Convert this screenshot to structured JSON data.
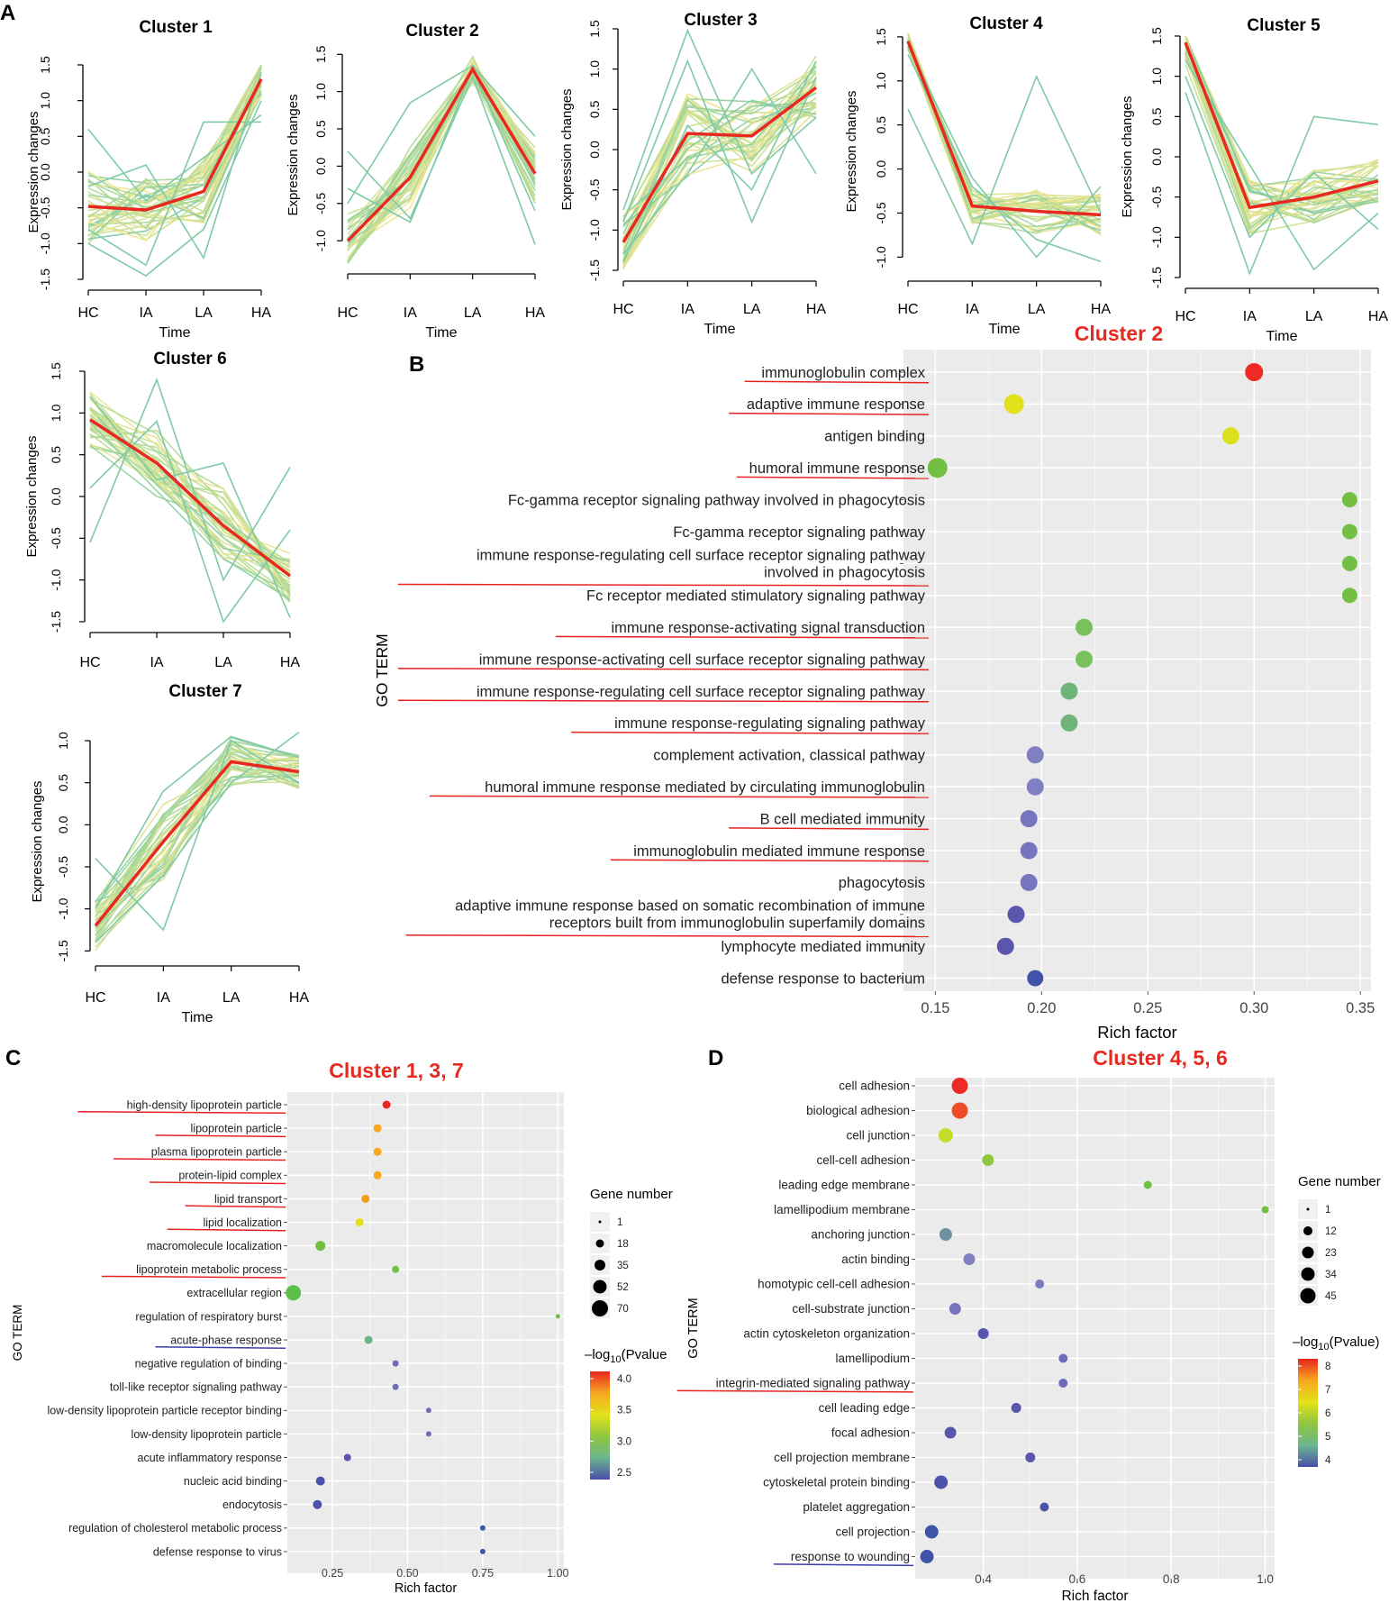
{
  "panel_labels": {
    "a": "A",
    "b": "B",
    "c": "C",
    "d": "D"
  },
  "chart_data": [
    {
      "panel": "A",
      "type": "line",
      "title": "Cluster 1",
      "xlabel": "Time",
      "ylabel": "Expression changes",
      "categories": [
        "HC",
        "IA",
        "LA",
        "HA"
      ],
      "yticks": [
        -1.5,
        -1.0,
        -0.5,
        0.0,
        0.5,
        1.0,
        1.5
      ],
      "ytick_labels": [
        "-1.5",
        "-1.0",
        "-0.5",
        "0.0",
        "0.5",
        "1.0",
        "1.5"
      ],
      "ylim": [
        -1.5,
        1.5
      ],
      "centroid": [
        -0.48,
        -0.53,
        -0.27,
        1.3
      ],
      "member_spread": [
        0.55,
        0.45,
        0.45,
        0.25
      ],
      "outliers": [
        [
          0.6,
          -0.4,
          0.2,
          0.8
        ],
        [
          -1.0,
          -1.45,
          -0.8,
          1.0
        ],
        [
          -0.2,
          0.1,
          -1.2,
          1.4
        ],
        [
          -0.8,
          -1.3,
          0.7,
          0.7
        ]
      ]
    },
    {
      "panel": "A",
      "type": "line",
      "title": "Cluster 2",
      "xlabel": "Time",
      "ylabel": "Expression changes",
      "categories": [
        "HC",
        "IA",
        "LA",
        "HA"
      ],
      "yticks": [
        -1.0,
        -0.5,
        0.0,
        0.5,
        1.0,
        1.5
      ],
      "ytick_labels": [
        "-1.0",
        "-0.5",
        "0.0",
        "0.5",
        "1.0",
        "1.5"
      ],
      "ylim": [
        -1.3,
        1.6
      ],
      "centroid": [
        -1.0,
        -0.15,
        1.3,
        -0.1
      ],
      "member_spread": [
        0.4,
        0.45,
        0.2,
        0.4
      ],
      "outliers": [
        [
          0.2,
          -0.7,
          1.2,
          -1.05
        ],
        [
          -0.5,
          0.85,
          1.35,
          0.4
        ],
        [
          -0.3,
          -0.75,
          1.3,
          -0.6
        ]
      ]
    },
    {
      "panel": "A",
      "type": "line",
      "title": "Cluster 3",
      "xlabel": "Time",
      "ylabel": "Expression changes",
      "categories": [
        "HC",
        "IA",
        "LA",
        "HA"
      ],
      "yticks": [
        -1.5,
        -1.0,
        -0.5,
        0.0,
        0.5,
        1.0,
        1.5
      ],
      "ytick_labels": [
        "-1.5",
        "-1.0",
        "-0.5",
        "0.0",
        "0.5",
        "1.0",
        "1.5"
      ],
      "ylim": [
        -1.5,
        1.5
      ],
      "centroid": [
        -1.15,
        0.2,
        0.17,
        0.77
      ],
      "member_spread": [
        0.35,
        0.55,
        0.45,
        0.4
      ],
      "outliers": [
        [
          -0.75,
          1.48,
          -0.3,
          0.4
        ],
        [
          -1.3,
          -0.3,
          1.0,
          -0.3
        ],
        [
          -0.9,
          1.1,
          -0.9,
          0.9
        ],
        [
          -1.4,
          0.3,
          -0.5,
          1.1
        ]
      ]
    },
    {
      "panel": "A",
      "type": "line",
      "title": "Cluster 4",
      "xlabel": "Time",
      "ylabel": "Expression changes",
      "categories": [
        "HC",
        "IA",
        "LA",
        "HA"
      ],
      "yticks": [
        -1.0,
        -0.5,
        0.0,
        0.5,
        1.0,
        1.5
      ],
      "ytick_labels": [
        "-1.0",
        "-0.5",
        "0.0",
        "0.5",
        "1.0",
        "1.5"
      ],
      "ylim": [
        -1.15,
        1.55
      ],
      "centroid": [
        1.45,
        -0.42,
        -0.48,
        -0.52
      ],
      "member_spread": [
        0.1,
        0.2,
        0.25,
        0.25
      ],
      "outliers": [
        [
          0.68,
          -0.85,
          1.05,
          -0.5
        ],
        [
          1.4,
          -0.1,
          -1.0,
          -0.2
        ],
        [
          1.3,
          -0.2,
          -0.8,
          -1.05
        ]
      ]
    },
    {
      "panel": "A",
      "type": "line",
      "title": "Cluster 5",
      "xlabel": "Time",
      "ylabel": "Expression changes",
      "categories": [
        "HC",
        "IA",
        "LA",
        "HA"
      ],
      "yticks": [
        -1.5,
        -1.0,
        -0.5,
        0.0,
        0.5,
        1.0,
        1.5
      ],
      "ytick_labels": [
        "-1.5",
        "-1.0",
        "-0.5",
        "0.0",
        "0.5",
        "1.0",
        "1.5"
      ],
      "ylim": [
        -1.5,
        1.5
      ],
      "centroid": [
        1.42,
        -0.63,
        -0.5,
        -0.3
      ],
      "member_spread": [
        0.3,
        0.35,
        0.35,
        0.3
      ],
      "outliers": [
        [
          0.8,
          -1.45,
          0.5,
          0.4
        ],
        [
          1.2,
          -0.1,
          -1.4,
          -0.7
        ],
        [
          1.0,
          -1.0,
          -0.2,
          -0.9
        ]
      ]
    },
    {
      "panel": "A",
      "type": "line",
      "title": "Cluster 6",
      "xlabel": "Time",
      "ylabel": "Expression changes",
      "categories": [
        "HC",
        "IA",
        "LA",
        "HA"
      ],
      "yticks": [
        -1.5,
        -1.0,
        -0.5,
        0.0,
        0.5,
        1.0,
        1.5
      ],
      "ytick_labels": [
        "-1.5",
        "-1.0",
        "-0.5",
        "0.0",
        "0.5",
        "1.0",
        "1.5"
      ],
      "ylim": [
        -1.5,
        1.5
      ],
      "centroid": [
        0.92,
        0.4,
        -0.35,
        -0.95
      ],
      "member_spread": [
        0.35,
        0.4,
        0.45,
        0.35
      ],
      "outliers": [
        [
          -0.55,
          1.4,
          -1.0,
          0.35
        ],
        [
          0.1,
          0.9,
          -1.5,
          -0.4
        ],
        [
          1.2,
          0.2,
          0.4,
          -1.45
        ]
      ]
    },
    {
      "panel": "A",
      "type": "line",
      "title": "Cluster 7",
      "xlabel": "Time",
      "ylabel": "Expression changes",
      "categories": [
        "HC",
        "IA",
        "LA",
        "HA"
      ],
      "yticks": [
        -1.5,
        -1.0,
        -0.5,
        0.0,
        0.5,
        1.0
      ],
      "ytick_labels": [
        "-1.5",
        "-1.0",
        "-0.5",
        "0.0",
        "0.5",
        "1.0"
      ],
      "ylim": [
        -1.55,
        1.15
      ],
      "centroid": [
        -1.2,
        -0.2,
        0.75,
        0.63
      ],
      "member_spread": [
        0.3,
        0.45,
        0.3,
        0.2
      ],
      "outliers": [
        [
          -0.4,
          -1.25,
          1.0,
          0.5
        ],
        [
          -1.0,
          0.4,
          1.05,
          0.8
        ],
        [
          -1.4,
          -0.6,
          0.5,
          1.1
        ]
      ]
    },
    {
      "panel": "B",
      "type": "scatter",
      "title": "Cluster 2",
      "xlabel": "Rich factor",
      "ylabel": "GO TERM",
      "xlim": [
        0.135,
        0.355
      ],
      "xticks": [
        0.15,
        0.2,
        0.25,
        0.3,
        0.35
      ],
      "xtick_labels": [
        "0.15",
        "0.20",
        "0.25",
        "0.30",
        "0.35"
      ],
      "terms": [
        "immunoglobulin complex",
        "adaptive immune response",
        "antigen binding",
        "humoral immune response",
        "Fc-gamma receptor signaling pathway involved in phagocytosis",
        "Fc-gamma receptor signaling pathway",
        [
          "immune response-regulating cell surface receptor signaling pathway",
          "involved in phagocytosis"
        ],
        "Fc receptor mediated stimulatory signaling pathway",
        "immune response-activating signal transduction",
        "immune response-activating cell surface receptor signaling pathway",
        "immune response-regulating cell surface receptor signaling pathway",
        "immune response-regulating signaling pathway",
        "complement activation, classical pathway",
        "humoral immune response mediated by circulating immunoglobulin",
        "B cell mediated immunity",
        "immunoglobulin mediated immune response",
        "phagocytosis",
        [
          "adaptive immune response based on somatic recombination of immune",
          "receptors built from immunoglobulin superfamily domains"
        ],
        "lymphocyte mediated immunity",
        "defense response to bacterium"
      ],
      "rich_factor": [
        0.3,
        0.187,
        0.289,
        0.151,
        0.345,
        0.345,
        0.345,
        0.345,
        0.22,
        0.22,
        0.213,
        0.213,
        0.197,
        0.197,
        0.194,
        0.194,
        0.194,
        0.188,
        0.183,
        0.197
      ],
      "color": [
        "#ee2a24",
        "#e3e21a",
        "#dbe01e",
        "#72bf44",
        "#72bf44",
        "#72bf44",
        "#72bf44",
        "#72bf44",
        "#79c15e",
        "#79c15e",
        "#6fb57a",
        "#6fb57a",
        "#7f7fc2",
        "#7f7fc2",
        "#7675bd",
        "#7675bd",
        "#7675bd",
        "#5a55ad",
        "#5a55ad",
        "#3f53a8"
      ],
      "size": [
        10,
        11,
        9.5,
        11,
        8.5,
        8.5,
        8.5,
        8.5,
        9.5,
        9.5,
        9.5,
        9.5,
        9.5,
        9.5,
        9.5,
        9.5,
        9.5,
        9.5,
        9.5,
        9
      ],
      "underline": [
        "red",
        "red",
        "none",
        "red",
        "none",
        "none",
        "red",
        "none",
        "red",
        "red",
        "red",
        "red",
        "none",
        "red",
        "red",
        "red",
        "none",
        "red",
        "none",
        "none"
      ]
    },
    {
      "panel": "C",
      "type": "scatter",
      "title": "Cluster 1, 3, 7",
      "xlabel": "Rich factor",
      "ylabel": "GO TERM",
      "xlim": [
        0.1,
        1.02
      ],
      "xticks": [
        0.25,
        0.5,
        0.75,
        1.0
      ],
      "xtick_labels": [
        "0.25",
        "0.50",
        "0.75",
        "1.00"
      ],
      "terms": [
        "high-density lipoprotein particle",
        "lipoprotein particle",
        "plasma lipoprotein particle",
        "protein-lipid complex",
        "lipid transport",
        "lipid localization",
        "macromolecule localization",
        "lipoprotein metabolic process",
        "extracellular region",
        "regulation of respiratory burst",
        "acute-phase response",
        "negative regulation of binding",
        "toll-like receptor signaling pathway",
        "low-density lipoprotein particle receptor binding",
        "low-density lipoprotein particle",
        "acute inflammatory response",
        "nucleic acid binding",
        "endocytosis",
        "regulation of cholesterol metabolic process",
        "defense response to virus"
      ],
      "rich_factor": [
        0.43,
        0.4,
        0.4,
        0.4,
        0.36,
        0.34,
        0.21,
        0.46,
        0.12,
        1.0,
        0.37,
        0.46,
        0.46,
        0.57,
        0.57,
        0.3,
        0.21,
        0.2,
        0.75,
        0.75
      ],
      "color": [
        "#e8261f",
        "#f7a721",
        "#f7a721",
        "#f7a721",
        "#f39a1f",
        "#e3e21a",
        "#72bf44",
        "#72bf44",
        "#5cbf4a",
        "#72bf44",
        "#6ab48a",
        "#6e6cb8",
        "#6e6cb8",
        "#6e6cb8",
        "#6e6cb8",
        "#5a55ad",
        "#4b53a8",
        "#4b53a8",
        "#3f53a8",
        "#3f53a8"
      ],
      "size": [
        4.5,
        4.5,
        4.5,
        4.5,
        4.5,
        4.5,
        5.5,
        4,
        8.5,
        2.5,
        4.5,
        3.5,
        3.5,
        3,
        3,
        4,
        5,
        5,
        3,
        3
      ],
      "underline": [
        "red",
        "red",
        "red",
        "red",
        "red",
        "red",
        "none",
        "red",
        "none",
        "none",
        "blue",
        "none",
        "none",
        "none",
        "none",
        "none",
        "none",
        "none",
        "none",
        "none"
      ],
      "legend": {
        "size_title": "Gene number",
        "size_labels": [
          "1",
          "18",
          "35",
          "52",
          "70"
        ],
        "color_title_prefix": "–log",
        "color_title_sub": "10",
        "color_title_suffix": "(Pvalue",
        "color_labels": [
          "4.0",
          "3.5",
          "3.0",
          "2.5"
        ]
      }
    },
    {
      "panel": "D",
      "type": "scatter",
      "title": "Cluster 4, 5, 6",
      "xlabel": "Rich factor",
      "ylabel": "GO TERM",
      "xlim": [
        0.255,
        1.02
      ],
      "xticks": [
        0.4,
        0.6,
        0.8,
        1.0
      ],
      "xtick_labels": [
        "0.4",
        "0.6",
        "0.8",
        "1.0"
      ],
      "terms": [
        "cell adhesion",
        "biological adhesion",
        "cell junction",
        "cell-cell adhesion",
        "leading edge membrane",
        "lamellipodium membrane",
        "anchoring junction",
        "actin binding",
        "homotypic cell-cell adhesion",
        "cell-substrate junction",
        "actin cytoskeleton organization",
        "lamellipodium",
        "integrin-mediated signaling pathway",
        "cell leading edge",
        "focal adhesion",
        "cell projection membrane",
        "cytoskeletal protein binding",
        "platelet aggregation",
        "cell projection",
        "response to wounding"
      ],
      "rich_factor": [
        0.35,
        0.35,
        0.32,
        0.41,
        0.75,
        1.0,
        0.32,
        0.37,
        0.52,
        0.34,
        0.4,
        0.57,
        0.57,
        0.47,
        0.33,
        0.5,
        0.31,
        0.53,
        0.29,
        0.28
      ],
      "color": [
        "#ee2a24",
        "#ef4a24",
        "#c3dc2a",
        "#8fc63f",
        "#72bf44",
        "#72bf44",
        "#6d93a0",
        "#7f7fc2",
        "#7b7bc0",
        "#7675bd",
        "#5a55ad",
        "#6e6cb8",
        "#6e6cb8",
        "#5a55ad",
        "#5a55ad",
        "#5a55ad",
        "#4b53a8",
        "#4b53a8",
        "#3f53a8",
        "#3f53a8"
      ],
      "size": [
        9,
        9,
        8,
        6.5,
        4.5,
        4,
        7,
        6.5,
        5,
        6.5,
        6,
        5,
        5,
        5.5,
        6.5,
        5.5,
        7.5,
        5,
        7.5,
        7.5
      ],
      "underline": [
        "none",
        "none",
        "none",
        "none",
        "none",
        "none",
        "none",
        "none",
        "none",
        "none",
        "none",
        "none",
        "red",
        "none",
        "none",
        "none",
        "none",
        "none",
        "none",
        "blue"
      ],
      "legend": {
        "size_title": "Gene number",
        "size_labels": [
          "1",
          "12",
          "23",
          "34",
          "45"
        ],
        "color_title_prefix": "–log",
        "color_title_sub": "10",
        "color_title_suffix": "(Pvalue)",
        "color_labels": [
          "8",
          "7",
          "6",
          "5",
          "4"
        ]
      }
    }
  ]
}
